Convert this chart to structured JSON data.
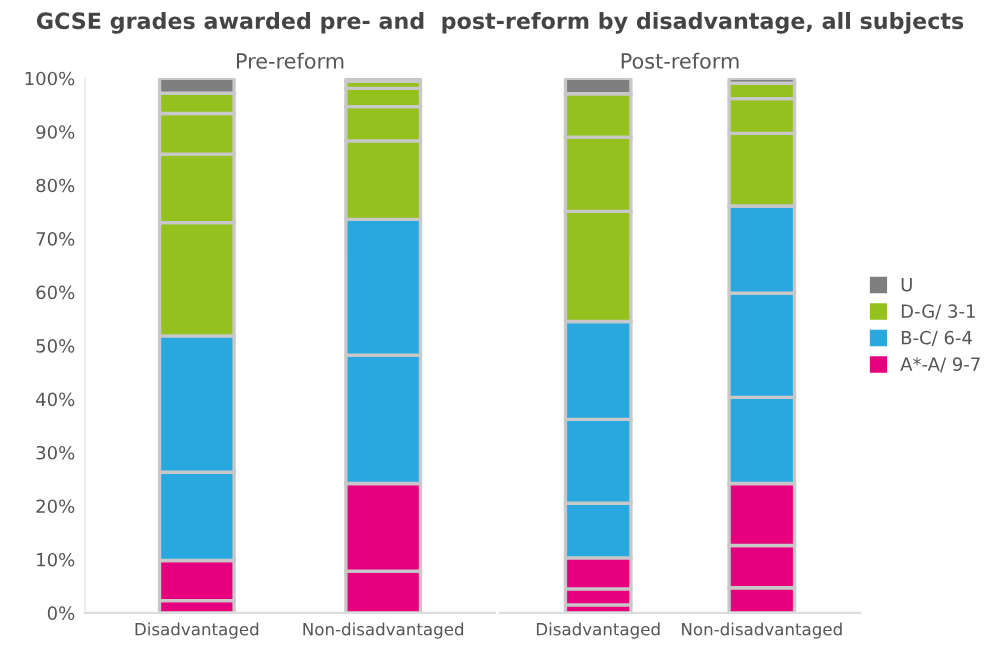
{
  "chart_data": [
    {
      "type": "bar",
      "stacked": true,
      "title": "GCSE grades awarded pre- and  post-reform by disadvantage, all subjects",
      "subtitle": "Pre-reform",
      "categories": [
        "Disadvantaged",
        "Non-disadvantaged"
      ],
      "ylim": [
        0,
        100
      ],
      "yticks": [
        {
          "value": 0,
          "label": "0%"
        },
        {
          "value": 10,
          "label": "10%"
        },
        {
          "value": 20,
          "label": "20%"
        },
        {
          "value": 30,
          "label": "30%"
        },
        {
          "value": 40,
          "label": "40%"
        },
        {
          "value": 50,
          "label": "50%"
        },
        {
          "value": 60,
          "label": "60%"
        },
        {
          "value": 70,
          "label": "70%"
        },
        {
          "value": 80,
          "label": "80%"
        },
        {
          "value": 90,
          "label": "90%"
        },
        {
          "value": 100,
          "label": "100%"
        }
      ],
      "grid": false,
      "legend": "right",
      "series": [
        {
          "name": "A*-A/ 9-7",
          "color": "#e6007e",
          "values": [
            2.3,
            7.8
          ]
        },
        {
          "color": "#e6007e",
          "values": [
            7.5,
            16.4
          ]
        },
        {
          "color": "#e6007e",
          "values": [
            null,
            null
          ]
        },
        {
          "name": "B-C/ 6-4",
          "color": "#29a8e0",
          "values": [
            16.5,
            24.0
          ]
        },
        {
          "color": "#29a8e0",
          "values": [
            25.5,
            25.4
          ]
        },
        {
          "color": "#29a8e0",
          "values": [
            null,
            null
          ]
        },
        {
          "name": "D-G/ 3-1",
          "color": "#95c11f",
          "values": [
            21.2,
            14.7
          ]
        },
        {
          "color": "#95c11f",
          "values": [
            12.8,
            6.4
          ]
        },
        {
          "color": "#95c11f",
          "values": [
            7.6,
            3.4
          ]
        },
        {
          "color": "#95c11f",
          "values": [
            3.8,
            1.3
          ]
        },
        {
          "name": "U",
          "color": "#7f7f7f",
          "values": [
            2.8,
            0.6
          ]
        }
      ]
    },
    {
      "type": "bar",
      "stacked": true,
      "subtitle": "Post-reform",
      "categories": [
        "Disadvantaged",
        "Non-disadvantaged"
      ],
      "ylim": [
        0,
        100
      ],
      "tick_labels": "x",
      "grid": false,
      "series": [
        {
          "color": "#e6007e",
          "values": [
            1.5,
            4.7
          ]
        },
        {
          "color": "#e6007e",
          "values": [
            3.0,
            7.9
          ]
        },
        {
          "color": "#e6007e",
          "values": [
            5.8,
            11.6
          ]
        },
        {
          "color": "#29a8e0",
          "values": [
            10.2,
            16.1
          ]
        },
        {
          "color": "#29a8e0",
          "values": [
            15.7,
            19.5
          ]
        },
        {
          "color": "#29a8e0",
          "values": [
            18.3,
            16.3
          ]
        },
        {
          "color": "#95c11f",
          "values": [
            20.6,
            13.6
          ]
        },
        {
          "color": "#95c11f",
          "values": [
            13.9,
            6.5
          ]
        },
        {
          "color": "#95c11f",
          "values": [
            8.1,
            2.9
          ]
        },
        {
          "color": "#95c11f",
          "values": [
            null,
            null
          ]
        },
        {
          "color": "#7f7f7f",
          "values": [
            2.9,
            0.9
          ]
        }
      ]
    }
  ]
}
